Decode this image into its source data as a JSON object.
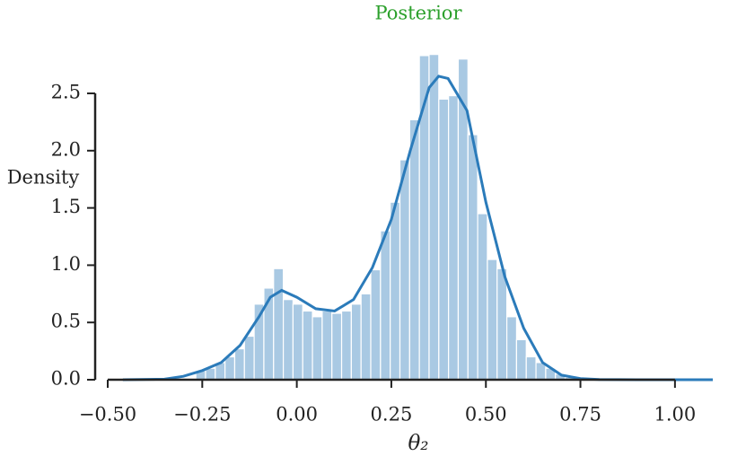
{
  "chart_data": {
    "type": "histogram",
    "title": "Posterior",
    "title_color": "#2ca02c",
    "xlabel": "θ₂",
    "ylabel": "Density",
    "bins": [
      -0.267,
      -0.2413,
      -0.2156,
      -0.1899,
      -0.1642,
      -0.1385,
      -0.1128,
      -0.0871,
      -0.0614,
      -0.0357,
      -0.01,
      0.0157,
      0.0414,
      0.0671,
      0.0928,
      0.1185,
      0.1442,
      0.1699,
      0.1956,
      0.2213,
      0.247,
      0.2727,
      0.2984,
      0.3241,
      0.3498,
      0.3755,
      0.4012,
      0.4269,
      0.4526,
      0.4783,
      0.504,
      0.5297,
      0.5554,
      0.5811,
      0.6068,
      0.6325,
      0.6582,
      0.6839,
      0.7096,
      0.7353
    ],
    "values": [
      0.08,
      0.1,
      0.15,
      0.2,
      0.27,
      0.38,
      0.66,
      0.8,
      0.97,
      0.7,
      0.66,
      0.6,
      0.55,
      0.6,
      0.58,
      0.6,
      0.66,
      0.75,
      0.96,
      1.3,
      1.55,
      1.92,
      2.27,
      2.83,
      2.84,
      2.45,
      2.48,
      2.8,
      2.14,
      1.45,
      1.05,
      0.97,
      0.55,
      0.35,
      0.2,
      0.15,
      0.1,
      0.05,
      0.02
    ],
    "color": "#a9c9e3",
    "kde": {
      "color": "#2b7bba",
      "x": [
        -0.46,
        -0.35,
        -0.3,
        -0.25,
        -0.2,
        -0.15,
        -0.1,
        -0.07,
        -0.04,
        0,
        0.05,
        0.1,
        0.15,
        0.2,
        0.25,
        0.3,
        0.35,
        0.375,
        0.4,
        0.45,
        0.5,
        0.55,
        0.6,
        0.65,
        0.7,
        0.75,
        0.8,
        0.9,
        1.0,
        1.1
      ],
      "y": [
        0,
        0.005,
        0.03,
        0.08,
        0.15,
        0.3,
        0.55,
        0.72,
        0.78,
        0.72,
        0.62,
        0.6,
        0.7,
        0.98,
        1.4,
        2.0,
        2.55,
        2.65,
        2.63,
        2.35,
        1.55,
        0.9,
        0.45,
        0.15,
        0.04,
        0.01,
        0.002,
        0,
        0,
        0
      ]
    },
    "xlim": [
      -0.5,
      1.1
    ],
    "ylim": [
      0,
      2.9
    ],
    "xticks": [
      {
        "value": -0.5,
        "label": "−0.50"
      },
      {
        "value": -0.25,
        "label": "−0.25"
      },
      {
        "value": 0,
        "label": "0.00"
      },
      {
        "value": 0.25,
        "label": "0.25"
      },
      {
        "value": 0.5,
        "label": "0.50"
      },
      {
        "value": 0.75,
        "label": "0.75"
      },
      {
        "value": 1,
        "label": "1.00"
      }
    ],
    "yticks": [
      {
        "value": 0,
        "label": "0.0"
      },
      0.5,
      {
        "value": 1,
        "label": "1.0"
      },
      1.5,
      {
        "value": 2,
        "label": "2.0"
      },
      2.5
    ]
  }
}
